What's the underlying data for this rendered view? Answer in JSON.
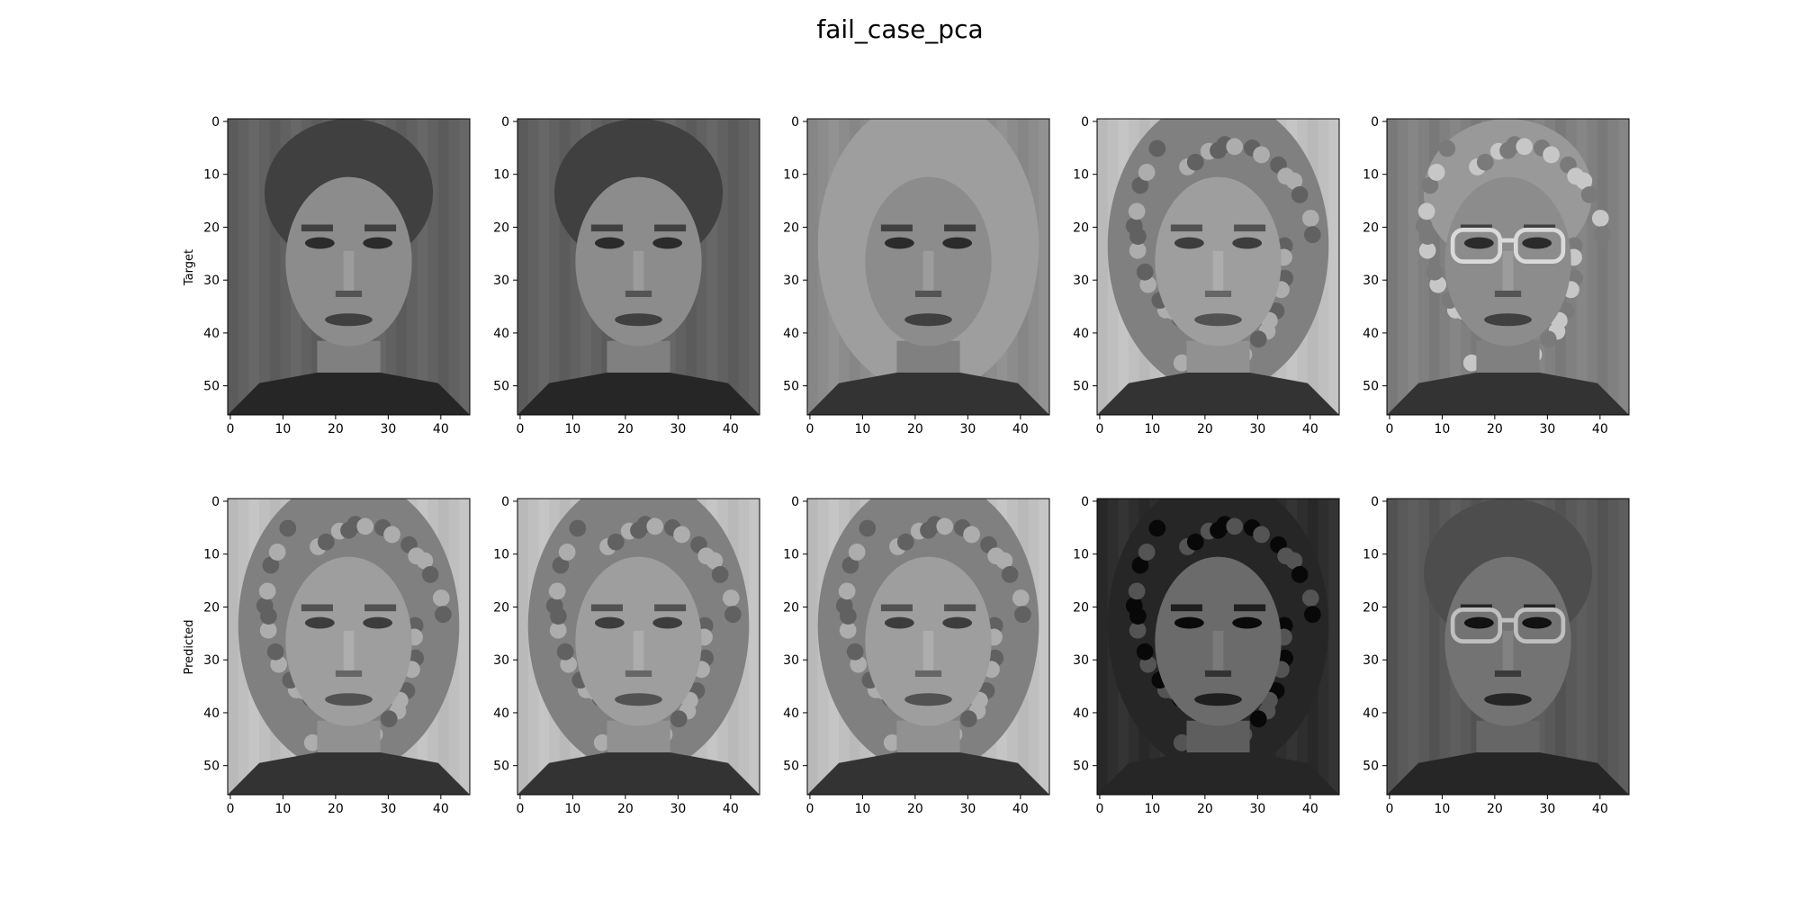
{
  "figure": {
    "title": "fail_case_pca",
    "background": "#ffffff"
  },
  "rows": [
    {
      "label": "Target"
    },
    {
      "label": "Predicted"
    }
  ],
  "chart_data": {
    "type": "image-grid",
    "title": "fail_case_pca",
    "colormap": "gray",
    "image_shape": {
      "height": 56,
      "width": 46
    },
    "xlim": [
      0,
      46
    ],
    "ylim": [
      56,
      0
    ],
    "x_ticks": [
      0,
      10,
      20,
      30,
      40
    ],
    "y_ticks": [
      0,
      10,
      20,
      30,
      40,
      50
    ],
    "rows": [
      {
        "ylabel": "Target",
        "images": [
          {
            "face": "young woman, dark hair pulled back, dark background",
            "hair": "dark",
            "bg_tone": 0.38,
            "skin_tone": 0.55,
            "glasses": false
          },
          {
            "face": "young woman, dark hair pulled back, dark background",
            "hair": "dark",
            "bg_tone": 0.38,
            "skin_tone": 0.55,
            "glasses": false
          },
          {
            "face": "woman with light shoulder-length hair",
            "hair": "light",
            "bg_tone": 0.55,
            "skin_tone": 0.55,
            "glasses": false
          },
          {
            "face": "woman with curly hair",
            "hair": "curly",
            "bg_tone": 0.75,
            "skin_tone": 0.62,
            "glasses": false
          },
          {
            "face": "older woman with glasses",
            "hair": "light-curly",
            "bg_tone": 0.5,
            "skin_tone": 0.55,
            "glasses": true
          }
        ]
      },
      {
        "ylabel": "Predicted",
        "images": [
          {
            "face": "woman with curly hair",
            "hair": "curly",
            "bg_tone": 0.75,
            "skin_tone": 0.62,
            "glasses": false
          },
          {
            "face": "woman with curly hair",
            "hair": "curly",
            "bg_tone": 0.75,
            "skin_tone": 0.62,
            "glasses": false
          },
          {
            "face": "woman with curly hair",
            "hair": "curly",
            "bg_tone": 0.75,
            "skin_tone": 0.62,
            "glasses": false
          },
          {
            "face": "woman with dark curly hair, dark background",
            "hair": "dark-curly",
            "bg_tone": 0.18,
            "skin_tone": 0.42,
            "glasses": false
          },
          {
            "face": "woman with short hair and glasses",
            "hair": "short-dark",
            "bg_tone": 0.35,
            "skin_tone": 0.45,
            "glasses": true
          }
        ]
      }
    ]
  }
}
